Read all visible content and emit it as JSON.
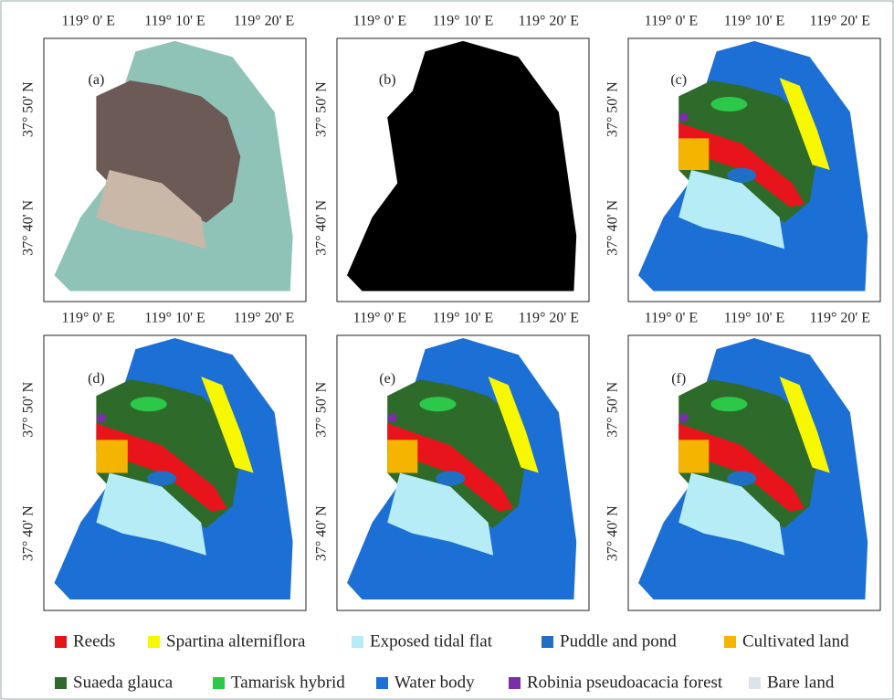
{
  "panels": [
    {
      "label": "(a)"
    },
    {
      "label": "(b)"
    },
    {
      "label": "(c)"
    },
    {
      "label": "(d)"
    },
    {
      "label": "(e)"
    },
    {
      "label": "(f)"
    }
  ],
  "x_labels": [
    "119°  0' E",
    "119°  10' E",
    "119°  20' E"
  ],
  "y_labels": [
    "37°  50' N",
    "37°  40' N"
  ],
  "legend": {
    "items": [
      {
        "name": "Reeds",
        "color": "#e8141c"
      },
      {
        "name": "Spartina alterniflora",
        "color": "#f7f700"
      },
      {
        "name": "Exposed tidal flat",
        "color": "#b5ecf6"
      },
      {
        "name": "Puddle and pond",
        "color": "#1f6fc4"
      },
      {
        "name": "Cultivated land",
        "color": "#f5b400"
      },
      {
        "name": "Suaeda glauca",
        "color": "#2e6b2a"
      },
      {
        "name": "Tamarisk hybrid",
        "color": "#2cc84a"
      },
      {
        "name": "Water body",
        "color": "#1c6fd4"
      },
      {
        "name": "Robinia pseudoacacia forest",
        "color": "#7b2fa6"
      },
      {
        "name": "Bare land",
        "color": "#dde3ea"
      }
    ]
  }
}
